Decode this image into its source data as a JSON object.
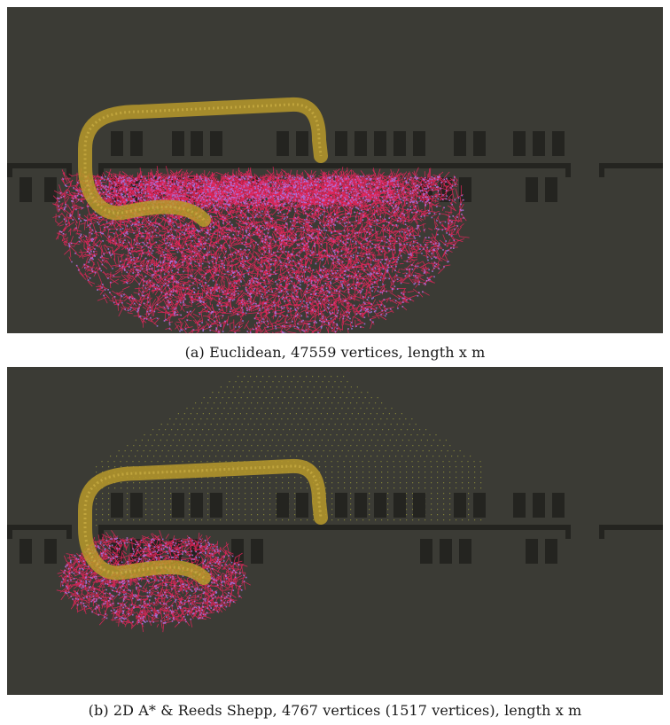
{
  "figure": {
    "panels": [
      {
        "id": "a",
        "caption": "(a) Euclidean, 47559 vertices, length x m",
        "method": "Euclidean",
        "vertices": 47559
      },
      {
        "id": "b",
        "caption": "(b) 2D A* & Reeds Shepp, 4767 vertices (1517 vertices), length x m",
        "method": "2D A* & Reeds Shepp",
        "vertices": 4767,
        "secondary_vertices": 1517
      }
    ],
    "colors": {
      "background": "#3b3b35",
      "obstacle": "#242420",
      "path": "#b89a2a",
      "tree_edge": "#e8245a",
      "tree_vertex": "#a87cf0",
      "grid_dot": "#9a9a3a"
    }
  }
}
